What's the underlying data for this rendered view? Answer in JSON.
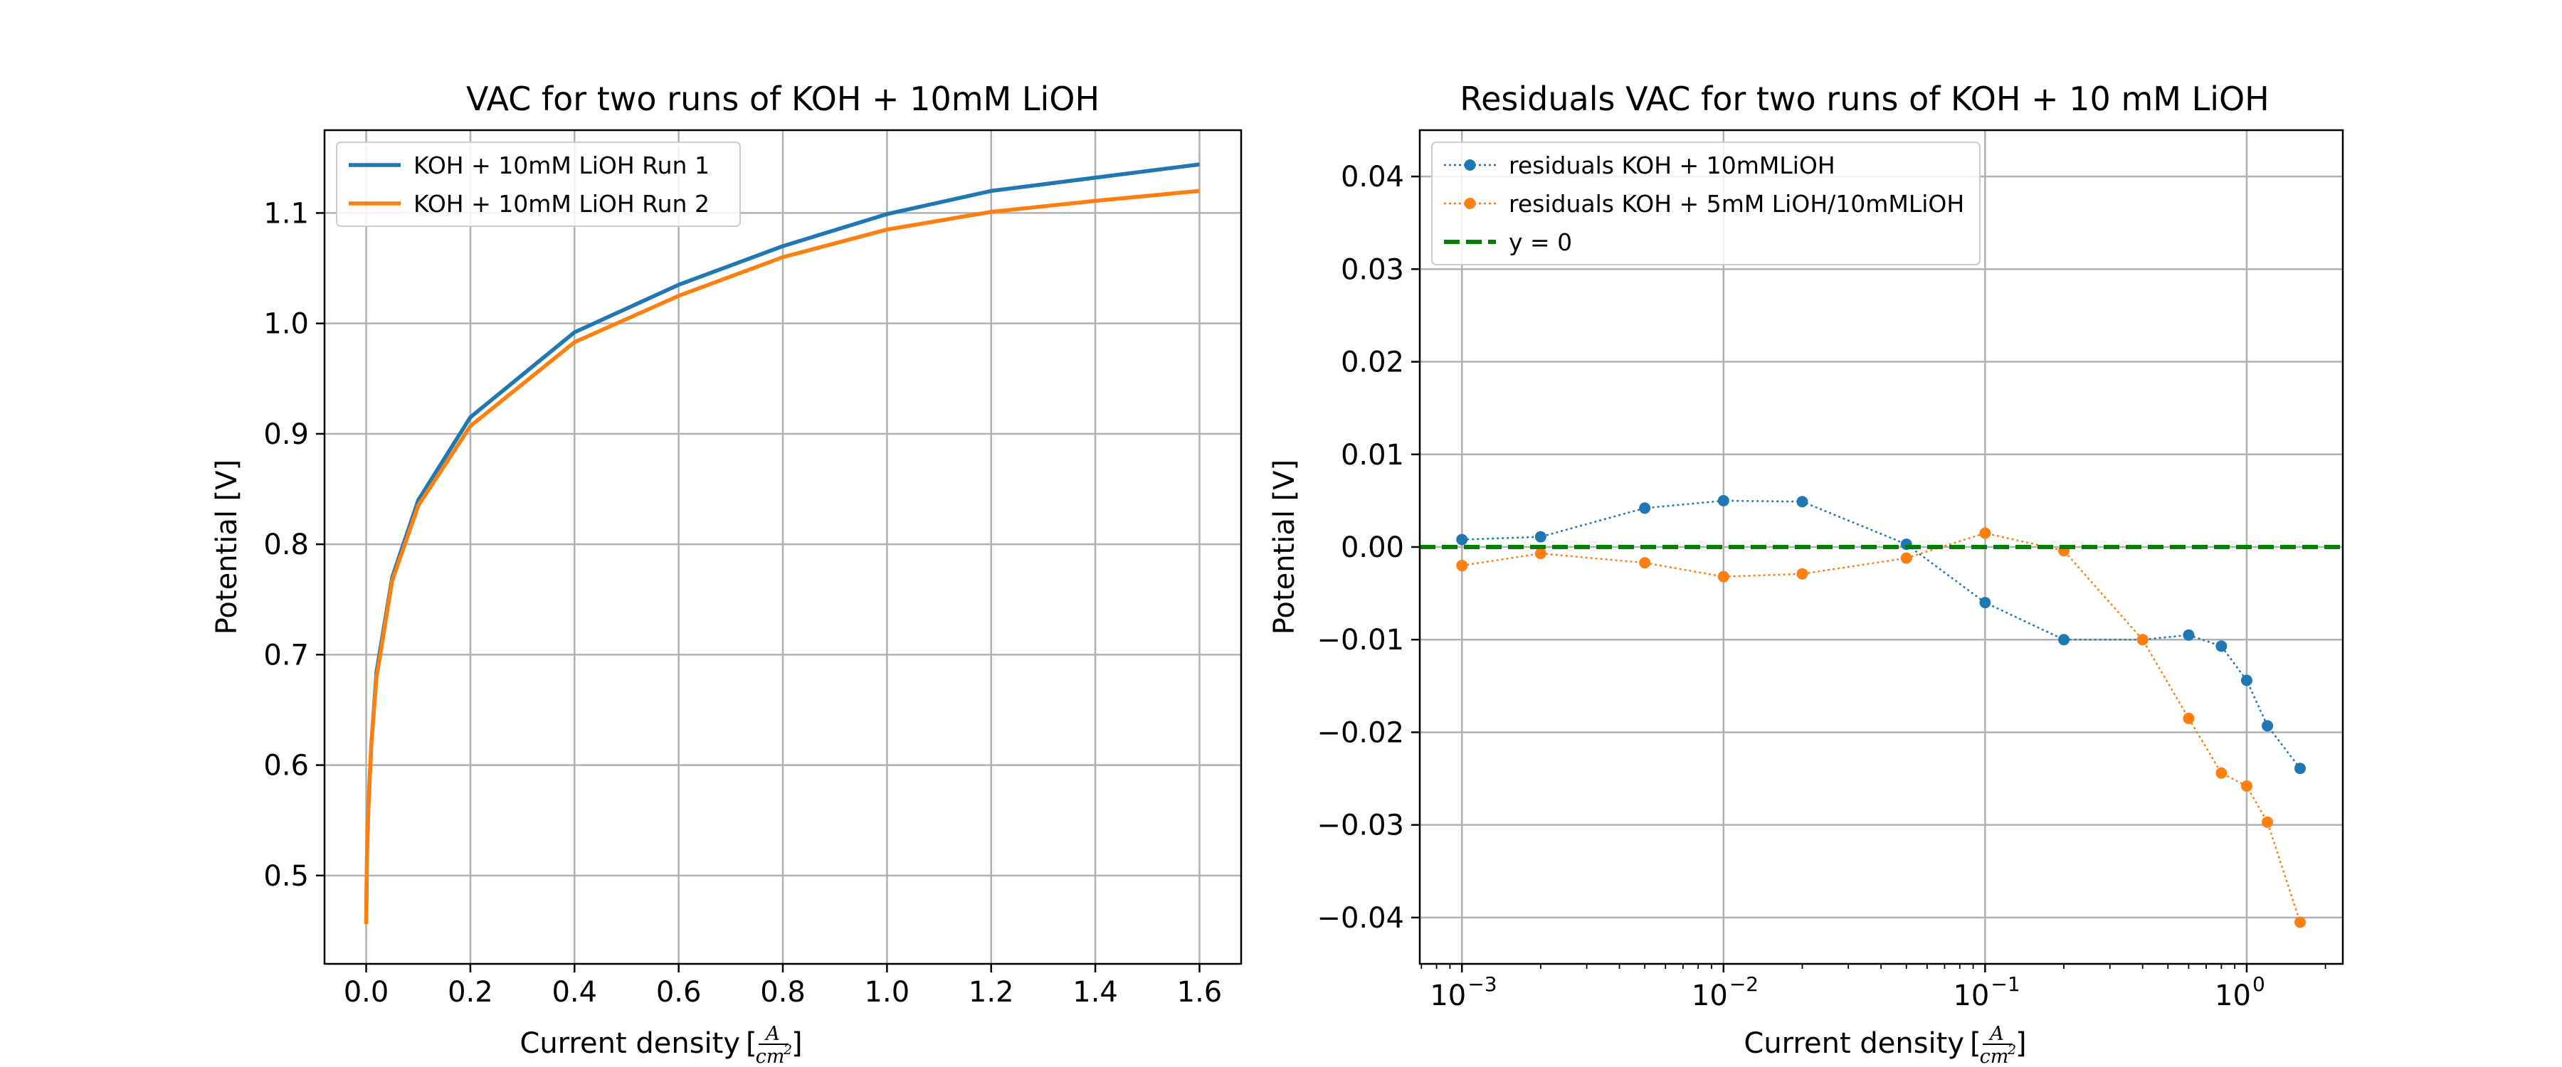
{
  "colors": {
    "series1": "#1f77b4",
    "series2": "#ff7f0e",
    "zero_line": "#008000",
    "grid": "#b0b0b0",
    "axes": "#000000"
  },
  "chart_data": [
    {
      "type": "line",
      "title": "VAC for two runs of KOH + 10mM LiOH",
      "xlabel": "Current density",
      "xlabel_unit": {
        "bracket_open": "[",
        "numerator": "A",
        "denominator": "cm",
        "exponent": "2",
        "bracket_close": "]"
      },
      "ylabel": "Potential [V]",
      "xlim": [
        -0.08,
        1.68
      ],
      "ylim": [
        0.42,
        1.175
      ],
      "grid": true,
      "legend_position": "upper-left",
      "xticks": [
        {
          "value": 0.0,
          "label": "0.0"
        },
        {
          "value": 0.2,
          "label": "0.2"
        },
        {
          "value": 0.4,
          "label": "0.4"
        },
        {
          "value": 0.6,
          "label": "0.6"
        },
        {
          "value": 0.8,
          "label": "0.8"
        },
        {
          "value": 1.0,
          "label": "1.0"
        },
        {
          "value": 1.2,
          "label": "1.2"
        },
        {
          "value": 1.4,
          "label": "1.4"
        },
        {
          "value": 1.6,
          "label": "1.6"
        }
      ],
      "yticks": [
        {
          "value": 0.5,
          "label": "0.5"
        },
        {
          "value": 0.6,
          "label": "0.6"
        },
        {
          "value": 0.7,
          "label": "0.7"
        },
        {
          "value": 0.8,
          "label": "0.8"
        },
        {
          "value": 0.9,
          "label": "0.9"
        },
        {
          "value": 1.0,
          "label": "1.0"
        },
        {
          "value": 1.1,
          "label": "1.1"
        }
      ],
      "series": [
        {
          "name": "KOH + 10mM LiOH Run 1",
          "color": "#1f77b4",
          "x": [
            0,
            0.001,
            0.002,
            0.005,
            0.01,
            0.02,
            0.05,
            0.1,
            0.2,
            0.4,
            0.6,
            0.8,
            1.0,
            1.2,
            1.4,
            1.6
          ],
          "y": [
            0.458,
            0.5,
            0.53,
            0.57,
            0.62,
            0.685,
            0.77,
            0.84,
            0.915,
            0.992,
            1.035,
            1.07,
            1.099,
            1.12,
            1.132,
            1.144
          ]
        },
        {
          "name": "KOH + 10mM LiOH Run 2",
          "color": "#ff7f0e",
          "x": [
            0,
            0.001,
            0.002,
            0.005,
            0.01,
            0.02,
            0.05,
            0.1,
            0.2,
            0.4,
            0.6,
            0.8,
            1.0,
            1.2,
            1.4,
            1.6
          ],
          "y": [
            0.456,
            0.5,
            0.53,
            0.57,
            0.62,
            0.68,
            0.767,
            0.835,
            0.907,
            0.983,
            1.025,
            1.06,
            1.085,
            1.101,
            1.111,
            1.12
          ]
        }
      ]
    },
    {
      "type": "line",
      "title": "Residuals VAC for two runs of KOH + 10 mM LiOH",
      "xlabel": "Current density",
      "xlabel_unit": {
        "bracket_open": "[",
        "numerator": "A",
        "denominator": "cm",
        "exponent": "2",
        "bracket_close": "]"
      },
      "ylabel": "Potential [V]",
      "xscale": "log",
      "xlim": [
        0.00069,
        2.33
      ],
      "ylim": [
        -0.045,
        0.045
      ],
      "grid": true,
      "legend_position": "upper-left",
      "xticks": [
        {
          "value": 0.001,
          "base": "10",
          "exponent": "−3"
        },
        {
          "value": 0.01,
          "base": "10",
          "exponent": "−2"
        },
        {
          "value": 0.1,
          "base": "10",
          "exponent": "−1"
        },
        {
          "value": 1,
          "base": "10",
          "exponent": "0"
        }
      ],
      "yticks": [
        {
          "value": -0.04,
          "label": "−0.04"
        },
        {
          "value": -0.03,
          "label": "−0.03"
        },
        {
          "value": -0.02,
          "label": "−0.02"
        },
        {
          "value": -0.01,
          "label": "−0.01"
        },
        {
          "value": 0.0,
          "label": "0.00"
        },
        {
          "value": 0.01,
          "label": "0.01"
        },
        {
          "value": 0.02,
          "label": "0.02"
        },
        {
          "value": 0.03,
          "label": "0.03"
        },
        {
          "value": 0.04,
          "label": "0.04"
        }
      ],
      "series": [
        {
          "name": "residuals KOH + 10mMLiOH",
          "color": "#1f77b4",
          "style": "dotted-with-markers",
          "x": [
            0.001,
            0.002,
            0.005,
            0.01,
            0.02,
            0.05,
            0.1,
            0.2,
            0.4,
            0.6,
            0.8,
            1.0,
            1.2,
            1.6
          ],
          "y": [
            0.0008,
            0.0011,
            0.0042,
            0.005,
            0.0049,
            0.0003,
            -0.006,
            -0.01,
            -0.01,
            -0.0095,
            -0.0107,
            -0.0144,
            -0.0193,
            -0.0239
          ]
        },
        {
          "name": "residuals KOH + 5mM LiOH/10mMLiOH",
          "color": "#ff7f0e",
          "style": "dotted-with-markers",
          "x": [
            0.001,
            0.002,
            0.005,
            0.01,
            0.02,
            0.05,
            0.1,
            0.2,
            0.4,
            0.6,
            0.8,
            1.0,
            1.2,
            1.6
          ],
          "y": [
            -0.002,
            -0.0007,
            -0.0017,
            -0.0032,
            -0.0029,
            -0.0012,
            0.0015,
            -0.0004,
            -0.01,
            -0.0185,
            -0.0244,
            -0.0258,
            -0.0297,
            -0.0405
          ]
        },
        {
          "name": "y = 0",
          "color": "#008000",
          "style": "dashed",
          "y_constant": 0
        }
      ]
    }
  ]
}
